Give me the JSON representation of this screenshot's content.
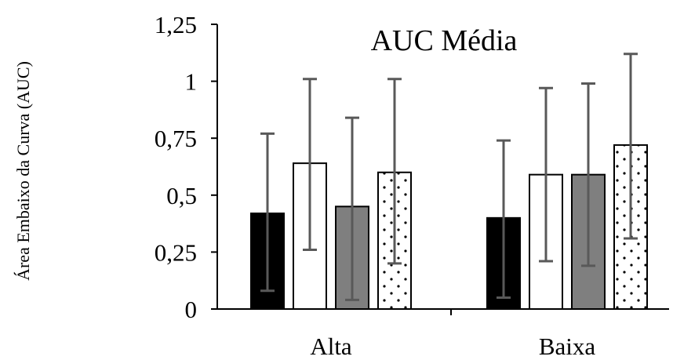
{
  "chart_data": {
    "type": "bar",
    "title": "AUC Média",
    "xlabel": "",
    "ylabel": "Área Embaixo da Curva (AUC)",
    "categories": [
      "Alta",
      "Baixa"
    ],
    "y_tick_labels": [
      "0",
      "0,25",
      "0,5",
      "0,75",
      "1",
      "1,25"
    ],
    "ylim": [
      0,
      1.25
    ],
    "grid": false,
    "legend": "none",
    "series": [
      {
        "style": "solid-black",
        "values": [
          0.42,
          0.4
        ],
        "error_low": [
          0.08,
          0.05
        ],
        "error_high": [
          0.77,
          0.74
        ]
      },
      {
        "style": "white",
        "values": [
          0.64,
          0.59
        ],
        "error_low": [
          0.26,
          0.21
        ],
        "error_high": [
          1.01,
          0.97
        ]
      },
      {
        "style": "gray",
        "values": [
          0.45,
          0.59
        ],
        "error_low": [
          0.04,
          0.19
        ],
        "error_high": [
          0.84,
          0.99
        ]
      },
      {
        "style": "dotted",
        "values": [
          0.6,
          0.72
        ],
        "error_low": [
          0.2,
          0.31
        ],
        "error_high": [
          1.01,
          1.12
        ]
      }
    ],
    "colors": {
      "solid-black": "#000000",
      "white": "#ffffff",
      "gray": "#7f7f7f",
      "dotted": "#ffffff",
      "error_bar": "#595959",
      "axis": "#000000"
    }
  }
}
